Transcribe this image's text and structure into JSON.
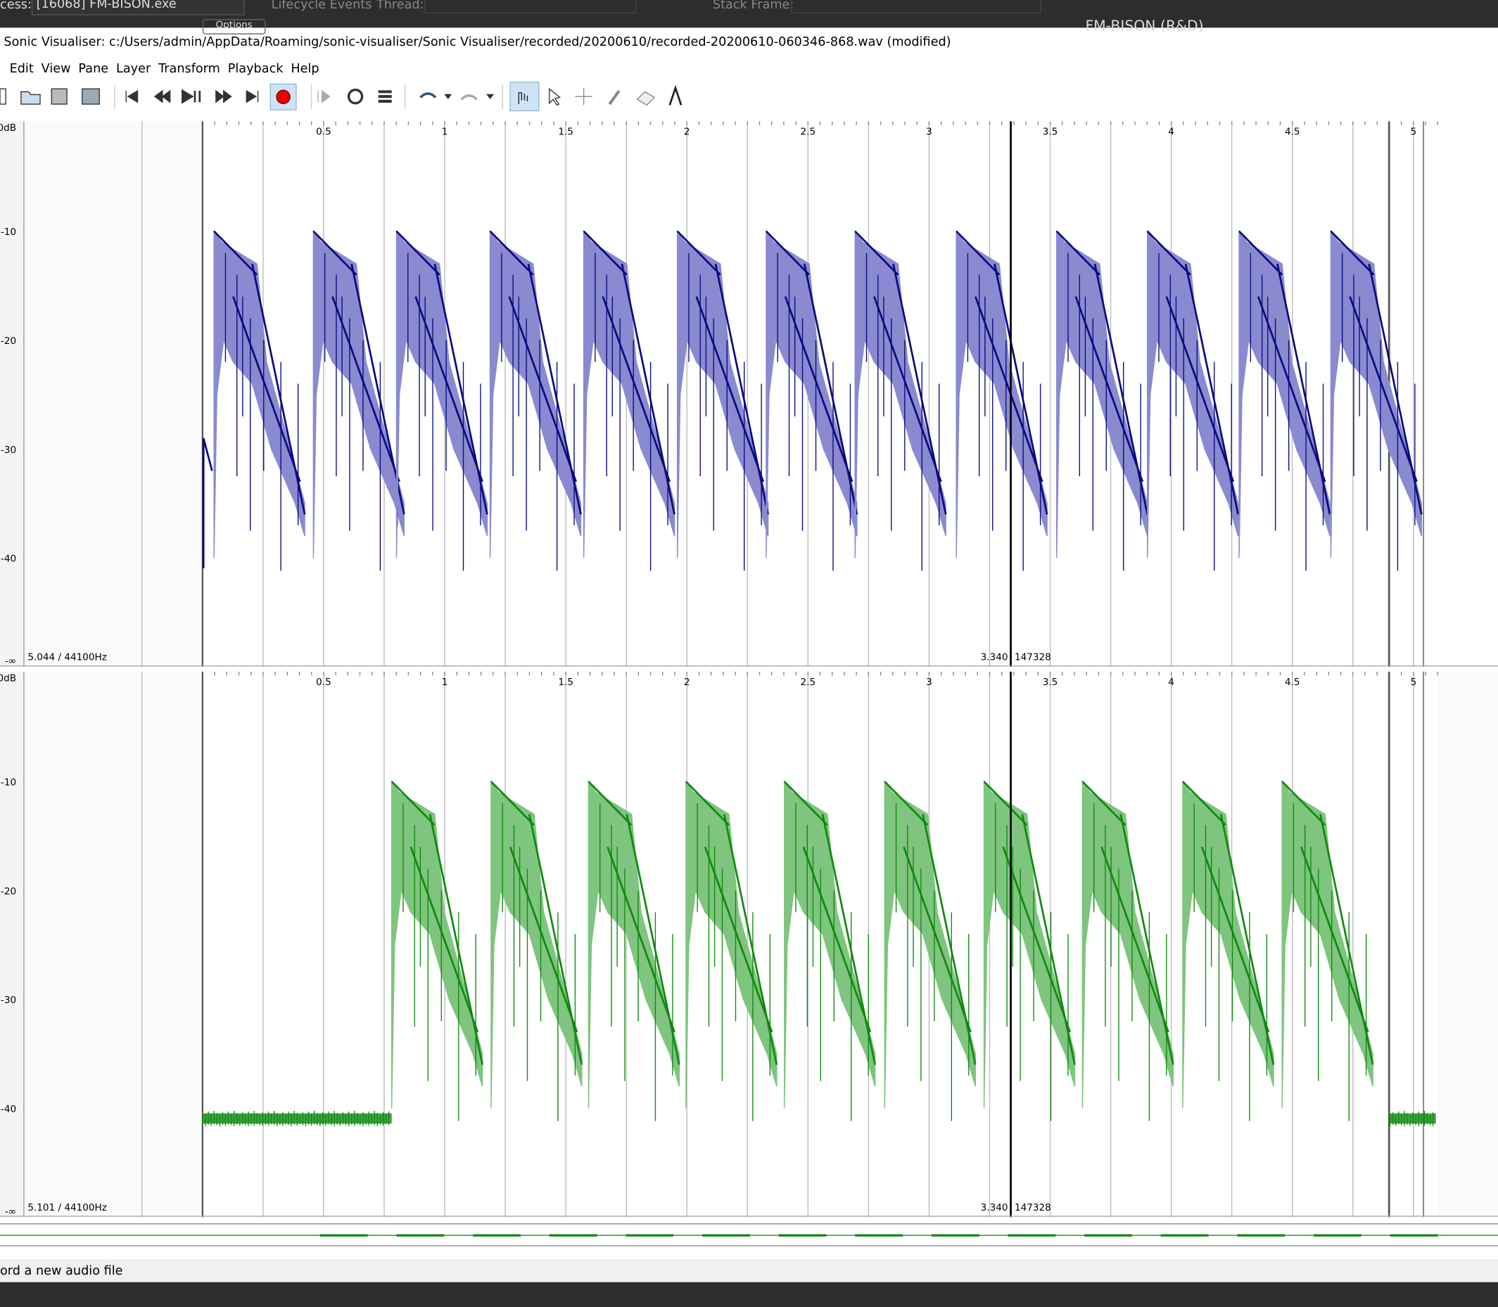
{
  "top_bar": {
    "process_label": "cess:",
    "process": "[16068] FM-BISON.exe",
    "lifecycle": "Lifecycle Events",
    "thread": "Thread:",
    "stack_frame": "Stack Frame:",
    "app_title": "FM-BISON (R&D)",
    "options": "Options"
  },
  "window": {
    "title": "Sonic Visualiser: c:/Users/admin/AppData/Roaming/sonic-visualiser/Sonic Visualiser/recorded/20200610/recorded-20200610-060346-868.wav (modified)"
  },
  "menu": [
    "Edit",
    "View",
    "Pane",
    "Layer",
    "Transform",
    "Playback",
    "Help"
  ],
  "panes": [
    {
      "db_labels": [
        "0dB",
        "-10",
        "-20",
        "-30",
        "-40",
        "-∞"
      ],
      "time_labels": [
        "0.5",
        "1",
        "1.5",
        "2",
        "2.5",
        "3",
        "3.5",
        "4",
        "4.5",
        "5"
      ],
      "info": "5.044 / 44100Hz",
      "cursor_time": "3.340",
      "cursor_frame": "147328"
    },
    {
      "db_labels": [
        "0dB",
        "-10",
        "-20",
        "-30",
        "-40",
        "-∞"
      ],
      "time_labels": [
        "0.5",
        "1",
        "1.5",
        "2",
        "2.5",
        "3",
        "3.5",
        "4",
        "4.5",
        "5"
      ],
      "info": "5.101 / 44100Hz",
      "cursor_time": "3.340",
      "cursor_frame": "147328"
    }
  ],
  "status": "ord a new audio file"
}
